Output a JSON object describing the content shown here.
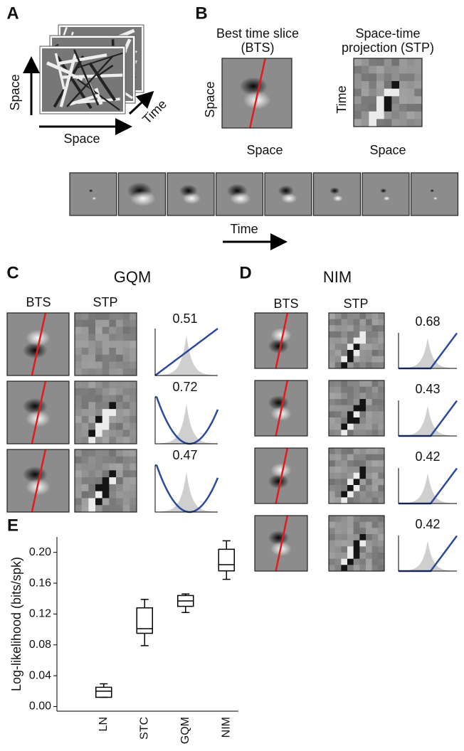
{
  "panel_a": {
    "label": "A",
    "y_axis": "Space",
    "x_axis": "Space",
    "time_axis": "Time"
  },
  "panel_b": {
    "label": "B",
    "bts_title": [
      "Best time slice",
      "(BTS)"
    ],
    "stp_title": [
      "Space-time",
      "projection (STP)"
    ],
    "bts_ylabel": "Space",
    "bts_xlabel": "Space",
    "stp_ylabel": "Time",
    "stp_xlabel": "Space",
    "strip_label": "Time"
  },
  "panel_c": {
    "label": "C",
    "title": "GQM",
    "columns": [
      "BTS",
      "STP"
    ],
    "weights": [
      0.51,
      0.72,
      0.47
    ]
  },
  "panel_d": {
    "label": "D",
    "title": "NIM",
    "columns": [
      "BTS",
      "STP"
    ],
    "weights": [
      0.68,
      0.43,
      0.42,
      0.42
    ]
  },
  "panel_e": {
    "label": "E"
  },
  "chart_data": {
    "type": "box",
    "ylabel": "Log-likelihood (bits/spk)",
    "categories": [
      "LN",
      "STC",
      "GQM",
      "NIM"
    ],
    "min": [
      0.012,
      0.079,
      0.122,
      0.165
    ],
    "q1": [
      0.012,
      0.095,
      0.13,
      0.176
    ],
    "median": [
      0.02,
      0.101,
      0.137,
      0.184
    ],
    "q3": [
      0.025,
      0.128,
      0.144,
      0.204
    ],
    "max": [
      0.0295,
      0.139,
      0.146,
      0.215
    ],
    "color": "#000000",
    "ylim": [
      -0.006,
      0.22
    ],
    "yticks": [
      {
        "value": 0,
        "label": "0.00"
      },
      {
        "value": 0.04,
        "label": "0.04"
      },
      {
        "value": 0.08,
        "label": "0.08"
      },
      {
        "value": 0.12,
        "label": "0.12"
      },
      {
        "value": 0.16,
        "label": "0.16"
      },
      {
        "value": 0.2,
        "label": "0.20"
      }
    ]
  }
}
